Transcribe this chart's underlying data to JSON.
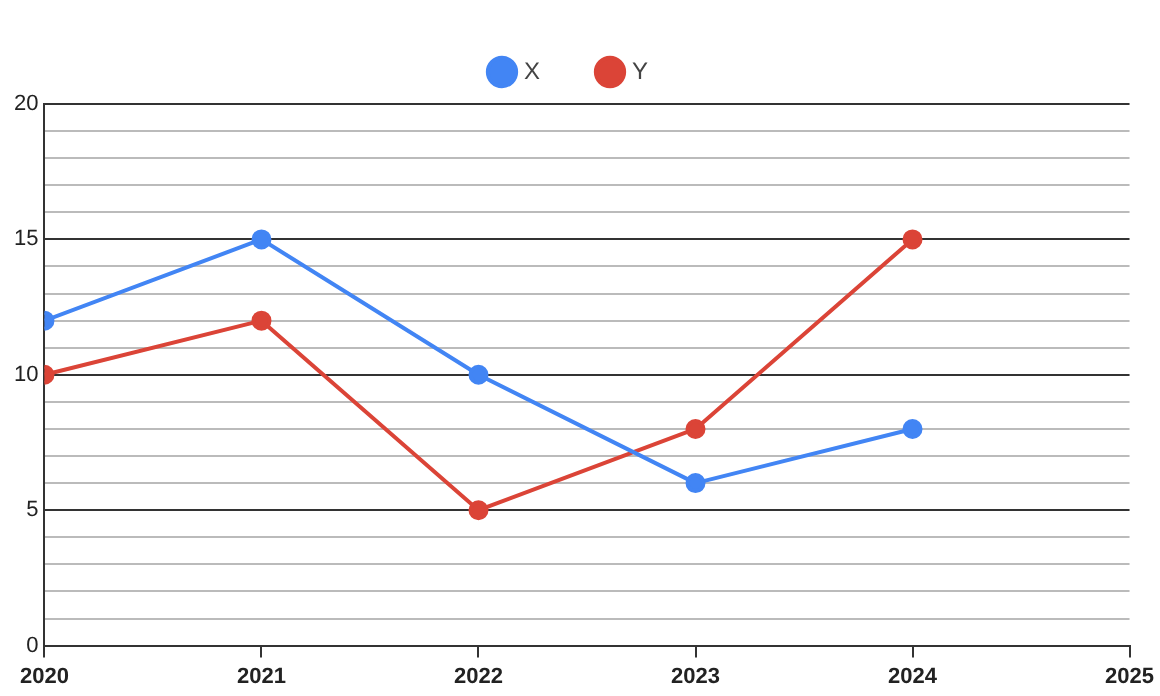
{
  "chart_data": {
    "type": "line",
    "x": [
      2020,
      2021,
      2022,
      2023,
      2024
    ],
    "series": [
      {
        "name": "X",
        "color": "#4285f4",
        "values": [
          12,
          15,
          10,
          6,
          8
        ]
      },
      {
        "name": "Y",
        "color": "#db4437",
        "values": [
          10,
          12,
          5,
          8,
          15
        ]
      }
    ],
    "xlim": [
      2020,
      2025
    ],
    "xticks": [
      2020,
      2021,
      2022,
      2023,
      2024,
      2025
    ],
    "ylim": [
      0,
      20
    ],
    "yticks": [
      0,
      {
        "value": 1,
        "label": null
      },
      {
        "value": 2,
        "label": null
      },
      {
        "value": 3,
        "label": null
      },
      {
        "value": 4,
        "label": null
      },
      5,
      {
        "value": 6,
        "label": null
      },
      {
        "value": 7,
        "label": null
      },
      {
        "value": 8,
        "label": null
      },
      {
        "value": 9,
        "label": null
      },
      10,
      {
        "value": 11,
        "label": null
      },
      {
        "value": 12,
        "label": null
      },
      {
        "value": 13,
        "label": null
      },
      {
        "value": 14,
        "label": null
      },
      15,
      {
        "value": 16,
        "label": null
      },
      {
        "value": 17,
        "label": null
      },
      {
        "value": 18,
        "label": null
      },
      {
        "value": 19,
        "label": null
      },
      20
    ],
    "grid": "y",
    "legend": "top",
    "marker": "circle",
    "line_style": "solid"
  }
}
